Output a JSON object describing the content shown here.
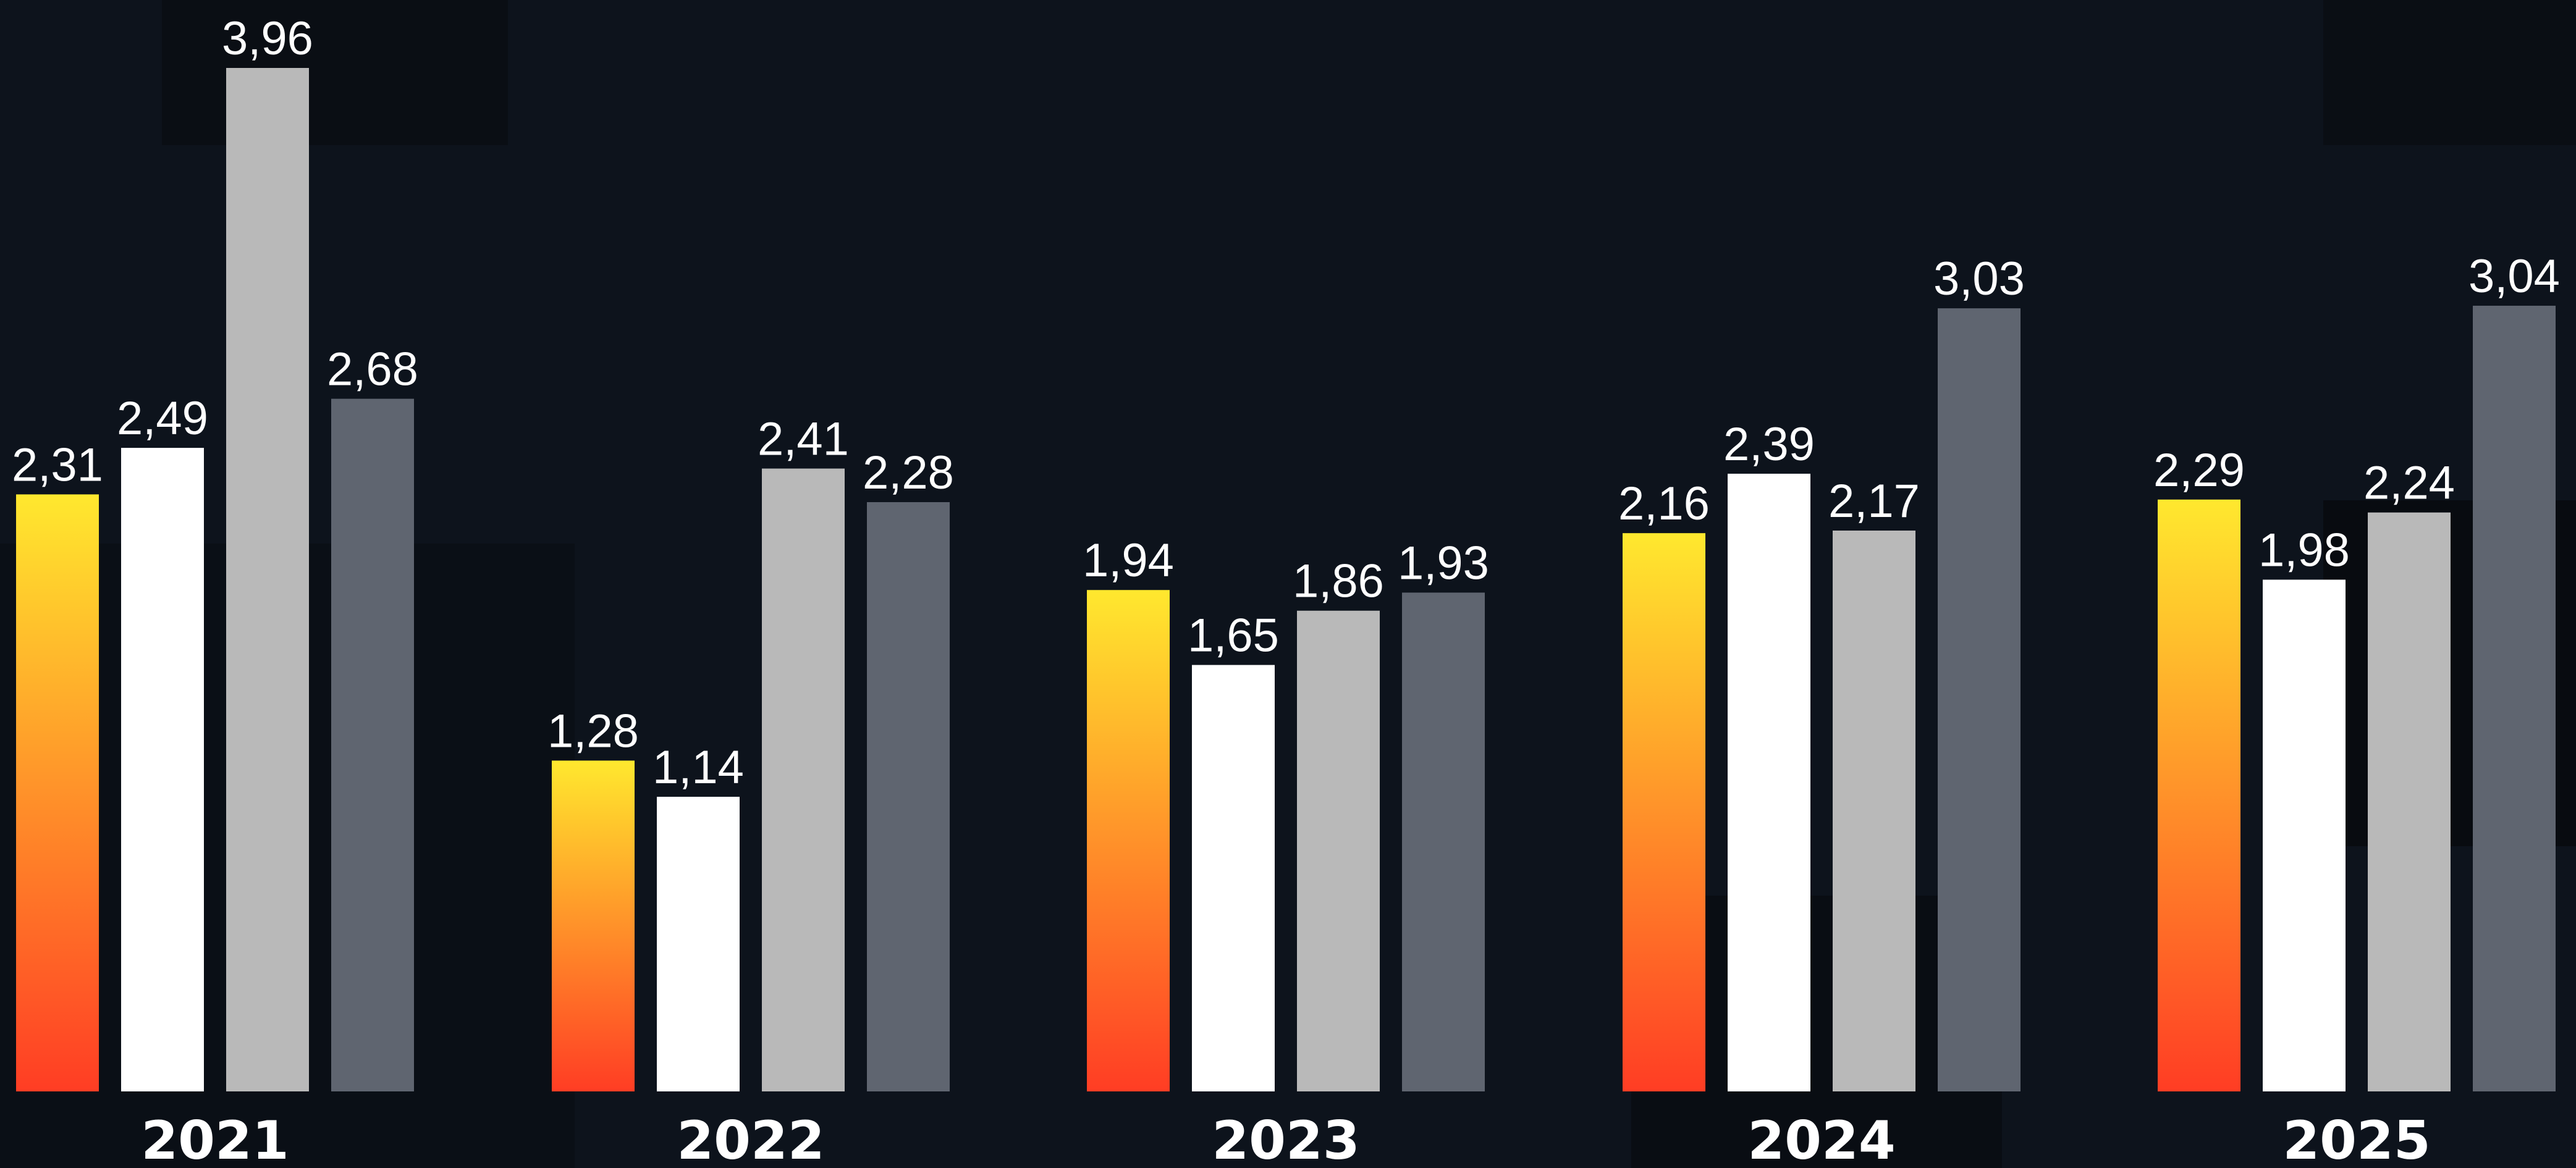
{
  "chart_data": {
    "type": "bar",
    "categories": [
      "2021",
      "2022",
      "2023",
      "2024",
      "2025"
    ],
    "series": [
      {
        "values": [
          2.31,
          1.28,
          1.94,
          2.16,
          2.29
        ],
        "color": "gradient-yellow-red"
      },
      {
        "values": [
          2.49,
          1.14,
          1.65,
          2.39,
          1.98
        ],
        "color": "#ffffff"
      },
      {
        "values": [
          3.96,
          2.41,
          1.86,
          2.17,
          2.24
        ],
        "color": "#b9b9b9"
      },
      {
        "values": [
          2.68,
          2.28,
          1.93,
          3.03,
          3.04
        ],
        "color": "#5f6570"
      }
    ],
    "value_labels": [
      [
        "2,31",
        "1,28",
        "1,94",
        "2,16",
        "2,29"
      ],
      [
        "2,49",
        "1,14",
        "1,65",
        "2,39",
        "1,98"
      ],
      [
        "3,96",
        "2,41",
        "1,86",
        "2,17",
        "2,24"
      ],
      [
        "2,68",
        "2,28",
        "1,93",
        "3,03",
        "3,04"
      ]
    ],
    "ylim": [
      0,
      3.96
    ],
    "grid": false,
    "legend": "none",
    "colors": {
      "background": "#0d131c",
      "gradient_top": "#ffe82e",
      "gradient_bottom": "#ff3d24",
      "label": "#ffffff"
    }
  }
}
